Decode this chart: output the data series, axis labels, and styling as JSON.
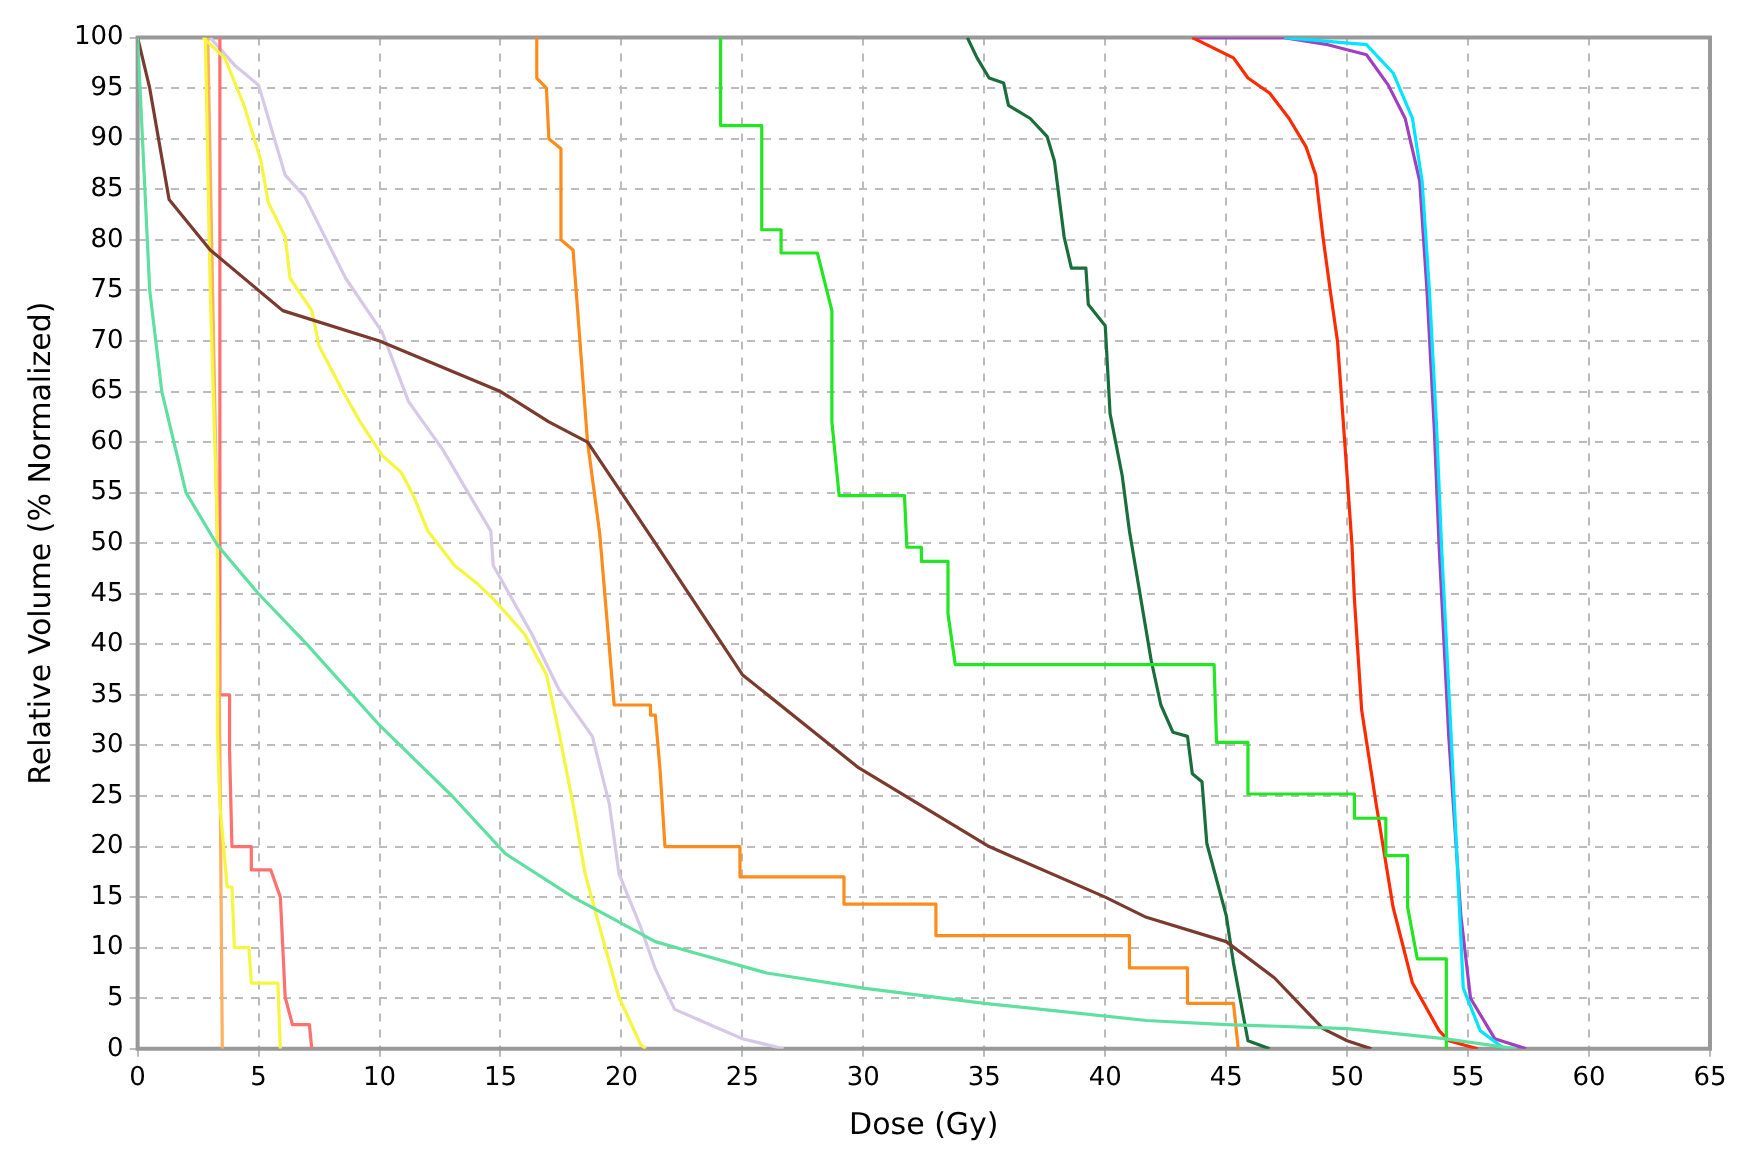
{
  "chart_data": {
    "type": "line",
    "xlabel": "Dose (Gy)",
    "ylabel": "Relative Volume (% Normalized)",
    "xlim": [
      0,
      65
    ],
    "xticks": [
      0,
      5,
      10,
      15,
      20,
      25,
      30,
      35,
      40,
      45,
      50,
      55,
      60,
      65
    ],
    "ylim": [
      0,
      100
    ],
    "yticks": [
      0,
      5,
      10,
      15,
      20,
      25,
      30,
      35,
      40,
      45,
      50,
      55,
      60,
      65,
      70,
      75,
      80,
      85,
      90,
      95,
      100
    ],
    "grid": true,
    "line_style": "solid",
    "marker": "none",
    "series": [
      {
        "color": "#5fe0a0",
        "x": [
          0,
          0.3,
          0.5,
          1,
          2,
          3.3,
          5,
          7,
          10,
          13,
          15.2,
          18,
          21.4,
          23,
          26,
          30,
          35,
          41.7,
          45,
          50,
          54,
          57
        ],
        "values": [
          100,
          85,
          75,
          65,
          55,
          49.8,
          45,
          40,
          32,
          25,
          19.3,
          15,
          10.6,
          9.5,
          7.5,
          6,
          4.5,
          2.8,
          2.4,
          2,
          1,
          0
        ]
      },
      {
        "color": "#7b3a2e",
        "x": [
          0,
          0.5,
          1.3,
          3,
          6,
          10,
          15,
          17,
          18.6,
          20,
          21.4,
          25,
          29.8,
          35.2,
          40,
          41.7,
          45,
          47,
          49,
          50,
          51
        ],
        "values": [
          100,
          95,
          84,
          79,
          73,
          70,
          65,
          62,
          60,
          55,
          50,
          37,
          27.8,
          20,
          15,
          13,
          10.6,
          7,
          2,
          0.8,
          0
        ]
      },
      {
        "color": "#ff8c1a",
        "x": [
          16.5,
          16.5,
          16.9,
          17,
          17.5,
          17.5,
          18,
          18.6,
          19.1,
          19.7,
          21.2,
          21.2,
          21.4,
          21.6,
          21.8,
          24.9,
          24.9,
          29.2,
          29.2,
          33,
          33,
          41,
          41,
          43.4,
          43.4,
          45.3,
          45.5
        ],
        "values": [
          100,
          96,
          95,
          90,
          89,
          80,
          79,
          60,
          51,
          34,
          34,
          33,
          33,
          27.5,
          20,
          20,
          17,
          17,
          14.3,
          14.3,
          11.2,
          11.2,
          8,
          8,
          4.5,
          4.5,
          0
        ]
      },
      {
        "color": "#22e622",
        "x": [
          24.1,
          24.1,
          25.8,
          25.8,
          26.6,
          26.6,
          28.1,
          28.7,
          28.7,
          29,
          31.7,
          31.8,
          32.4,
          32.4,
          33.5,
          33.5,
          33.8,
          44.5,
          44.6,
          45.9,
          45.9,
          50.3,
          50.3,
          51.6,
          51.6,
          52.5,
          52.5,
          52.9,
          54.1,
          54.1
        ],
        "values": [
          100,
          91.3,
          91.3,
          81,
          81,
          78.7,
          78.7,
          73,
          62,
          54.7,
          54.7,
          49.6,
          49.6,
          48.2,
          48.2,
          43,
          38,
          38,
          30.3,
          30.3,
          25.2,
          25.2,
          22.8,
          22.8,
          19.1,
          19.1,
          14,
          8.9,
          8.9,
          0
        ]
      },
      {
        "color": "#1a6e3c",
        "x": [
          34.3,
          34.7,
          35.2,
          35.8,
          36,
          36.9,
          37.6,
          37.9,
          38.3,
          38.6,
          39.2,
          39.3,
          40,
          40.2,
          40.7,
          41,
          41.9,
          42.3,
          42.8,
          43.4,
          43.6,
          44,
          44.2,
          45,
          45.3,
          45.9,
          46.8
        ],
        "values": [
          100,
          98,
          96,
          95.5,
          93.3,
          92,
          90.2,
          87.8,
          80.3,
          77.2,
          77.2,
          73.6,
          71.5,
          62.8,
          56.7,
          51.2,
          38.4,
          34,
          31.3,
          30.9,
          27.2,
          26.4,
          20.3,
          13.2,
          8.5,
          0.8,
          0
        ]
      },
      {
        "color": "#ff2a00",
        "x": [
          43.6,
          45.3,
          45.9,
          46.8,
          47.6,
          48.3,
          48.7,
          49,
          49.3,
          49.6,
          49.9,
          50.2,
          50.3,
          50.6,
          51.2,
          51.9,
          52.7,
          53.8,
          54.2,
          55.4
        ],
        "values": [
          100,
          98,
          96,
          94.5,
          92,
          89.2,
          86.4,
          80.3,
          75,
          70,
          60,
          49.8,
          44.5,
          33.5,
          24.2,
          14,
          6.5,
          1.8,
          0.8,
          0
        ]
      },
      {
        "color": "#00e5ff",
        "x": [
          47.4,
          50.8,
          51.9,
          52.7,
          53.1,
          53.4,
          53.7,
          53.9,
          54.3,
          54.8,
          55.5,
          56.5
        ],
        "values": [
          100,
          99.3,
          96.5,
          92,
          85.8,
          75,
          61.4,
          49.8,
          30.9,
          6,
          1.8,
          0
        ]
      },
      {
        "color": "#a040c0",
        "x": [
          43.6,
          47.4,
          49.2,
          50.8,
          51.7,
          52.4,
          53,
          53.3,
          53.6,
          53.8,
          54.2,
          54.7,
          55.1,
          56.1,
          57.4
        ],
        "values": [
          100,
          100,
          99.3,
          98.3,
          95.3,
          92,
          85.8,
          75,
          61.4,
          49.8,
          30.9,
          13.2,
          5,
          1,
          0
        ]
      },
      {
        "color": "#f5f542",
        "x": [
          2.7,
          3.6,
          4.4,
          5.1,
          5.4,
          6.1,
          6.3,
          7.2,
          7.5,
          8.4,
          9.2,
          10.1,
          10.9,
          11.4,
          12,
          13.1,
          14,
          14.7,
          16,
          16.9,
          17.4,
          18,
          18.5,
          19.1,
          19.9,
          20.8,
          21
        ],
        "values": [
          100,
          98,
          93.3,
          87.8,
          83.7,
          80.3,
          76.2,
          73,
          69.5,
          65.4,
          62,
          58.7,
          57,
          54.7,
          51.2,
          47.8,
          46.1,
          44.5,
          41,
          37,
          31.5,
          24.2,
          17.3,
          12,
          5.1,
          0.4,
          0
        ]
      },
      {
        "color": "#f5f542",
        "x": [
          2.8,
          3,
          3.3,
          3.3,
          3.4,
          3.7,
          3.9,
          4,
          4.6,
          4.7,
          5.8,
          5.9
        ],
        "values": [
          100,
          75,
          51.2,
          31,
          24.2,
          16,
          16,
          10,
          10,
          6.5,
          6.5,
          0
        ]
      },
      {
        "color": "#ffb060",
        "x": [
          2.9,
          3.1,
          3.3,
          3.4,
          3.5
        ],
        "values": [
          100,
          75,
          50,
          30,
          0
        ]
      },
      {
        "color": "#ff7070",
        "x": [
          3.4,
          3.4,
          3.8,
          3.8,
          3.9,
          4.7,
          4.7,
          5.5,
          5.9,
          6.1,
          6.4,
          7.1,
          7.2
        ],
        "values": [
          100,
          35,
          35,
          29.5,
          20,
          20,
          17.7,
          17.7,
          15,
          5.1,
          2.4,
          2.4,
          0
        ]
      },
      {
        "color": "#d8c8e8",
        "x": [
          3,
          4,
          5,
          6.1,
          6.9,
          8.6,
          10.1,
          11.2,
          12.6,
          14.6,
          14.7,
          16.3,
          17.4,
          18.8,
          19.5,
          19.9,
          20.8,
          21.4,
          22.2,
          25,
          26.7
        ],
        "values": [
          100,
          97.3,
          95.3,
          86.4,
          84.3,
          76.2,
          70.9,
          64,
          59.3,
          51.2,
          47.8,
          41,
          35.6,
          30.9,
          24.2,
          17.3,
          12,
          7.9,
          3.9,
          1,
          0
        ]
      }
    ]
  }
}
